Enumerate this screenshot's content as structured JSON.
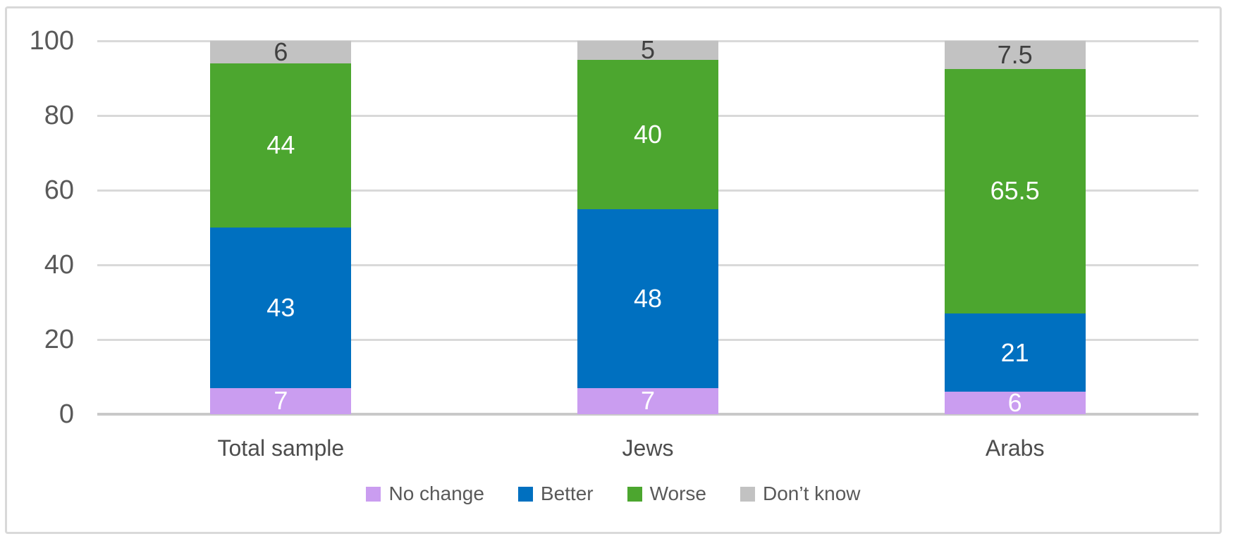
{
  "chart_data": {
    "type": "bar",
    "stacked": true,
    "title": "",
    "categories": [
      "Total sample",
      "Jews",
      "Arabs"
    ],
    "series": [
      {
        "name": "No change",
        "color": "#ca9df0",
        "label_color": "#ffffff",
        "values": [
          7,
          7,
          6
        ]
      },
      {
        "name": "Better",
        "color": "#0070c0",
        "label_color": "#ffffff",
        "values": [
          43,
          48,
          21
        ]
      },
      {
        "name": "Worse",
        "color": "#4ca62f",
        "label_color": "#ffffff",
        "values": [
          44,
          40,
          65.5
        ]
      },
      {
        "name": "Don’t know",
        "color": "#c2c2c2",
        "label_color": "#404040",
        "values": [
          6,
          5,
          7.5
        ]
      }
    ],
    "ylim": [
      0,
      100
    ],
    "yticks": [
      0,
      20,
      40,
      60,
      80,
      100
    ],
    "grid": true,
    "legend_position": "bottom"
  },
  "colors": {
    "gridline": "#d9d9d9",
    "zero_line": "#c9c9c9",
    "tick_text": "#595959",
    "category_text": "#4d4d4d",
    "legend_text": "#595959",
    "frame_border": "#d9d9d9",
    "background": "#ffffff"
  }
}
